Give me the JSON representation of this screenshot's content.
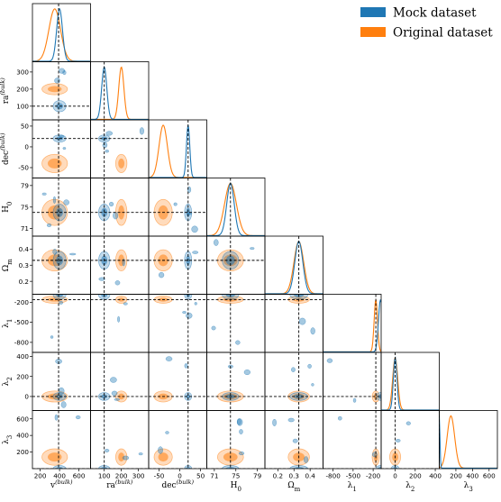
{
  "chart_data": {
    "type": "scatter",
    "title": "",
    "plot_kind": "corner plot (triangle of 1D posteriors and 2D credible contours)",
    "legend": {
      "placement": "top-right",
      "entries": [
        {
          "label": "Mock dataset",
          "color": "#1f77b4"
        },
        {
          "label": "Original dataset",
          "color": "#ff7f0e"
        }
      ]
    },
    "parameters": [
      {
        "key": "v",
        "label": "v^(bulk)",
        "base": "v",
        "sup": "(bulk)",
        "ticks": [
          200,
          400,
          600
        ],
        "range": [
          120,
          720
        ],
        "truth": 390
      },
      {
        "key": "ra",
        "label": "ra^(bulk)",
        "base": "ra",
        "sup": "(bulk)",
        "ticks": [
          100,
          200,
          300
        ],
        "range": [
          20,
          360
        ],
        "truth": 100
      },
      {
        "key": "dec",
        "label": "dec^(bulk)",
        "base": "dec",
        "sup": "(bulk)",
        "ticks": [
          -50,
          0,
          50
        ],
        "range": [
          -75,
          65
        ],
        "truth": 20
      },
      {
        "key": "H0",
        "label": "H0",
        "base": "H",
        "sub": "0",
        "ticks": [
          71,
          75,
          79
        ],
        "range": [
          69.6,
          80.4
        ],
        "truth": 74
      },
      {
        "key": "Om",
        "label": "Ωm",
        "base": "Ω",
        "sub": "m",
        "ticks": [
          0.2,
          0.3,
          0.4
        ],
        "range": [
          0.12,
          0.48
        ],
        "truth": 0.33
      },
      {
        "key": "l1",
        "label": "λ1",
        "base": "λ",
        "sub": "1",
        "ticks": [
          -800,
          -500,
          -200
        ],
        "range": [
          -950,
          -80
        ],
        "truth": -160
      },
      {
        "key": "l2",
        "label": "λ2",
        "base": "λ",
        "sub": "2",
        "ticks": [
          0,
          200,
          400
        ],
        "range": [
          -140,
          440
        ],
        "truth": 0
      },
      {
        "key": "l3",
        "label": "λ3",
        "base": "λ",
        "sub": "3",
        "ticks": [
          200,
          400,
          600
        ],
        "range": [
          0,
          700
        ],
        "truth": 0
      }
    ],
    "series": [
      {
        "name": "Mock dataset",
        "color": "#1f77b4",
        "means": {
          "v": 400,
          "ra": 100,
          "dec": 20,
          "H0": 74,
          "Om": 0.33,
          "l1": -90,
          "l2": 0,
          "l3": 0
        },
        "sigmas": {
          "v": 30,
          "ra": 15,
          "dec": 4,
          "H0": 0.7,
          "Om": 0.025,
          "l1": 30,
          "l2": 18,
          "l3": 8
        }
      },
      {
        "name": "Original dataset",
        "color": "#ff7f0e",
        "means": {
          "v": 350,
          "ra": 200,
          "dec": -40,
          "H0": 74,
          "Om": 0.33,
          "l1": -160,
          "l2": 0,
          "l3": 140
        },
        "sigmas": {
          "v": 60,
          "ra": 15,
          "dec": 10,
          "H0": 1.1,
          "Om": 0.03,
          "l1": 25,
          "l2": 25,
          "l3": 45
        }
      }
    ]
  }
}
